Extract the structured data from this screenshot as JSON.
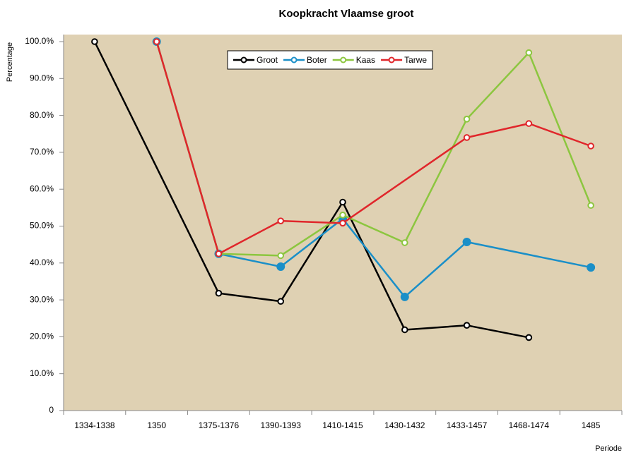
{
  "chart_data": {
    "type": "line",
    "title": "Koopkracht Vlaamse groot",
    "y_label": "Percentage",
    "x_label": "Periode",
    "categories": [
      "1334-1338",
      "1350",
      "1375-1376",
      "1390-1393",
      "1410-1415",
      "1430-1432",
      "1433-1457",
      "1468-1474",
      "1485"
    ],
    "series": [
      {
        "name": "Groot",
        "color": "#000000",
        "values": [
          100,
          null,
          31.8,
          29.6,
          56.5,
          21.9,
          23.1,
          19.8,
          null
        ]
      },
      {
        "name": "Boter",
        "color": "#1a8fc8",
        "values": [
          null,
          100,
          42.5,
          39,
          52,
          30.8,
          45.7,
          null,
          38.8
        ]
      },
      {
        "name": "Kaas",
        "color": "#8cc63f",
        "values": [
          null,
          100,
          42.5,
          42,
          53,
          45.5,
          79,
          97,
          55.6
        ]
      },
      {
        "name": "Tarwe",
        "color": "#e0262b",
        "values": [
          null,
          100,
          42.5,
          51.4,
          50.8,
          null,
          74,
          77.8,
          71.7
        ]
      }
    ],
    "ylim": [
      0,
      100
    ],
    "yticks": [
      0,
      {
        "value": 10,
        "label": "10.0%"
      },
      {
        "value": 20,
        "label": "20.0%"
      },
      {
        "value": 30,
        "label": "30.0%"
      },
      {
        "value": 40,
        "label": "40.0%"
      },
      {
        "value": 50,
        "label": "50.0%"
      },
      {
        "value": 60,
        "label": "60.0%"
      },
      {
        "value": 70,
        "label": "70.0%"
      },
      {
        "value": 80,
        "label": "80.0%"
      },
      {
        "value": 90,
        "label": "90.0%"
      },
      {
        "value": 100,
        "label": "100.0%"
      }
    ],
    "grid": false,
    "legend": "top",
    "plot_background": "#dfd1b3"
  }
}
